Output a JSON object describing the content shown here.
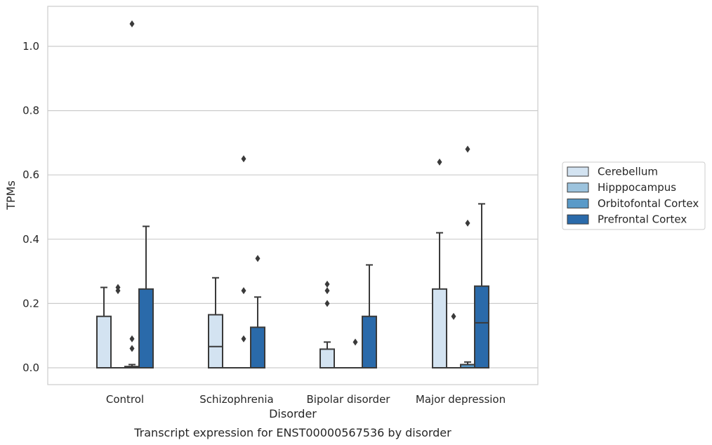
{
  "chart_data": {
    "type": "box",
    "caption": "Transcript expression for ENST00000567536 by disorder",
    "xlabel": "Disorder",
    "ylabel": "TPMs",
    "ylim": [
      -0.05,
      1.13
    ],
    "yticks": [
      "0.0",
      "0.2",
      "0.4",
      "0.6",
      "0.8",
      "1.0"
    ],
    "grid": true,
    "legend_position": "right",
    "categories": [
      "Control",
      "Schizophrenia",
      "Bipolar disorder",
      "Major depression"
    ],
    "series": [
      {
        "name": "Cerebellum",
        "color": "#d3e3f1",
        "boxes": [
          {
            "q1": 0,
            "median": 0,
            "q3": 0.16,
            "whisker_low": 0,
            "whisker_high": 0.25,
            "outliers": []
          },
          {
            "q1": 0,
            "median": 0.066,
            "q3": 0.165,
            "whisker_low": 0,
            "whisker_high": 0.28,
            "outliers": []
          },
          {
            "q1": 0,
            "median": 0,
            "q3": 0.058,
            "whisker_low": 0,
            "whisker_high": 0.08,
            "outliers": [
              0.2,
              0.24,
              0.26
            ]
          },
          {
            "q1": 0,
            "median": 0,
            "q3": 0.245,
            "whisker_low": 0,
            "whisker_high": 0.42,
            "outliers": [
              0.64
            ]
          }
        ]
      },
      {
        "name": "Hipppocampus",
        "color": "#9cc3dd",
        "boxes": [
          {
            "q1": 0,
            "median": 0,
            "q3": 0,
            "whisker_low": 0,
            "whisker_high": 0,
            "outliers": [
              0.24,
              0.25
            ]
          },
          {
            "q1": 0,
            "median": 0,
            "q3": 0,
            "whisker_low": 0,
            "whisker_high": 0,
            "outliers": []
          },
          {
            "q1": 0,
            "median": 0,
            "q3": 0,
            "whisker_low": 0,
            "whisker_high": 0,
            "outliers": []
          },
          {
            "q1": 0,
            "median": 0,
            "q3": 0,
            "whisker_low": 0,
            "whisker_high": 0,
            "outliers": [
              0.16
            ]
          }
        ]
      },
      {
        "name": "Orbitofontal Cortex",
        "color": "#5a9ac8",
        "boxes": [
          {
            "q1": 0,
            "median": 0,
            "q3": 0.004,
            "whisker_low": 0,
            "whisker_high": 0.01,
            "outliers": [
              0.06,
              0.09,
              1.07
            ]
          },
          {
            "q1": 0,
            "median": 0,
            "q3": 0,
            "whisker_low": 0,
            "whisker_high": 0,
            "outliers": [
              0.09,
              0.24,
              0.65
            ]
          },
          {
            "q1": 0,
            "median": 0,
            "q3": 0,
            "whisker_low": 0,
            "whisker_high": 0,
            "outliers": [
              0.08
            ]
          },
          {
            "q1": 0,
            "median": 0,
            "q3": 0.01,
            "whisker_low": 0,
            "whisker_high": 0.018,
            "outliers": [
              0.45,
              0.68
            ]
          }
        ]
      },
      {
        "name": "Prefrontal Cortex",
        "color": "#2a6aaa",
        "boxes": [
          {
            "q1": 0,
            "median": 0,
            "q3": 0.245,
            "whisker_low": 0,
            "whisker_high": 0.44,
            "outliers": []
          },
          {
            "q1": 0,
            "median": 0,
            "q3": 0.126,
            "whisker_low": 0,
            "whisker_high": 0.22,
            "outliers": [
              0.34
            ]
          },
          {
            "q1": 0,
            "median": 0,
            "q3": 0.16,
            "whisker_low": 0,
            "whisker_high": 0.32,
            "outliers": []
          },
          {
            "q1": 0,
            "median": 0.14,
            "q3": 0.254,
            "whisker_low": 0,
            "whisker_high": 0.51,
            "outliers": []
          }
        ]
      }
    ]
  }
}
